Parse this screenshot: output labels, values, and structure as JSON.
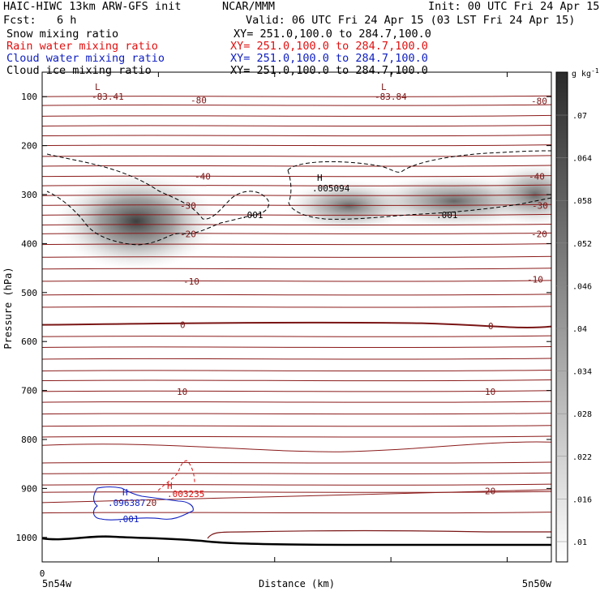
{
  "header": {
    "title_left": "HAIC-HIWC 13km ARW-GFS init",
    "org": "NCAR/MMM",
    "init": "Init: 00 UTC Fri 24 Apr 15",
    "fcst_label": "Fcst:",
    "fcst_value": "6 h",
    "valid": "Valid: 06 UTC Fri 24 Apr 15 (03 LST Fri 24 Apr 15)",
    "fields": [
      {
        "name": "Snow mixing ratio",
        "xy": "XY= 251.0,100.0 to 284.7,100.0",
        "color": "#000000"
      },
      {
        "name": "Rain water mixing ratio",
        "xy": "XY= 251.0,100.0 to 284.7,100.0",
        "color": "#e01010"
      },
      {
        "name": "Cloud water mixing ratio",
        "xy": "XY= 251.0,100.0 to 284.7,100.0",
        "color": "#1020c0"
      },
      {
        "name": "Cloud ice mixing ratio",
        "xy": "XY= 251.0,100.0 to 284.7,100.0",
        "color": "#000000"
      }
    ]
  },
  "chart_data": {
    "type": "heatmap",
    "xlabel": "Distance (km)",
    "ylabel": "Pressure (hPa)",
    "x_ticks": [
      "0",
      "",
      "",
      "",
      ""
    ],
    "x_endpoints": [
      "5n54w",
      "5n50w"
    ],
    "y_ticks": [
      100,
      200,
      300,
      400,
      500,
      600,
      700,
      800,
      900,
      1000
    ],
    "ylim": [
      1050,
      50
    ],
    "y_scale": "linear",
    "colorbar": {
      "unit": "g kg",
      "unit_exp": "-1",
      "ticks": [
        ".07",
        ".064",
        ".058",
        ".052",
        ".046",
        ".04",
        ".034",
        ".028",
        ".022",
        ".016",
        ".01"
      ]
    },
    "temperature_isotherms": {
      "color": "#8b1a1a",
      "labels": [
        {
          "text": "L",
          "p": 80
        },
        {
          "text": "-83.41",
          "p": 100
        },
        {
          "text": "-80",
          "p": 107
        },
        {
          "text": "L",
          "p": 80
        },
        {
          "text": "-83.84",
          "p": 100
        },
        {
          "text": "-80",
          "p": 109
        },
        {
          "text": "-40",
          "p": 263
        },
        {
          "text": "-40",
          "p": 263
        },
        {
          "text": "-30",
          "p": 322
        },
        {
          "text": "-30",
          "p": 322
        },
        {
          "text": "-20",
          "p": 380
        },
        {
          "text": "-20",
          "p": 380
        },
        {
          "text": "-10",
          "p": 477
        },
        {
          "text": "-10",
          "p": 473
        },
        {
          "text": "0",
          "p": 566
        },
        {
          "text": "0",
          "p": 568
        },
        {
          "text": "10",
          "p": 702
        },
        {
          "text": "10",
          "p": 702
        },
        {
          "text": "20",
          "p": 929
        },
        {
          "text": "20",
          "p": 905
        }
      ]
    },
    "snow_contour_labels": [
      {
        "text": "H",
        "p": 278
      },
      {
        "text": ".005094",
        "p": 296
      },
      {
        "text": ".001",
        "p": 360
      },
      {
        "text": ".001",
        "p": 360
      }
    ],
    "rain_contour_labels": [
      {
        "text": "H",
        "p": 910
      },
      {
        "text": ".003235",
        "p": 920
      }
    ],
    "cloud_water_labels": [
      {
        "text": "H",
        "p": 916
      },
      {
        "text": ".096387",
        "p": 932
      },
      {
        "text": ".001",
        "p": 968
      }
    ],
    "ice_cloud_max": 0.07,
    "ice_cloud_shading": [
      {
        "region": "left",
        "p_center": 360,
        "max_gkg": 0.07
      },
      {
        "region": "right",
        "p_center": 320,
        "max_gkg": 0.064
      }
    ],
    "surface_pressure_hpa": 1010,
    "grid": false
  }
}
